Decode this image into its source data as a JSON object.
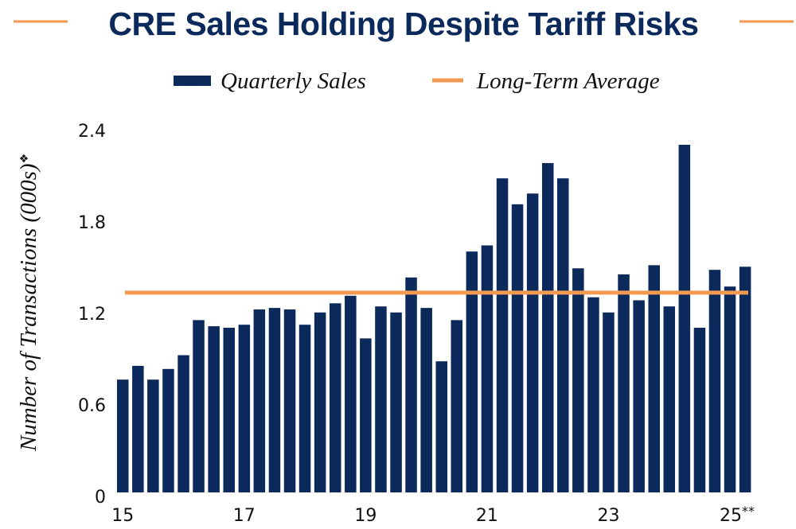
{
  "colors": {
    "bar": "#0b2a5b",
    "average_line": "#f39a52",
    "title": "#0b2a5b",
    "text": "#111111"
  },
  "chart_data": {
    "type": "bar",
    "title": "CRE Sales Holding Despite Tariff Risks",
    "xlabel": "",
    "ylabel": "Number of Transactions (000s)",
    "ylabel_marker": "❖",
    "ylim": [
      0,
      2.4
    ],
    "yticks": [
      0,
      0.6,
      1.2,
      1.8,
      2.4
    ],
    "ytick_labels": [
      "0",
      "0.6",
      "1.2",
      "1.8",
      "2.4"
    ],
    "grid": false,
    "legend": {
      "placement": "top-center",
      "entries": [
        {
          "label": "Quarterly Sales",
          "type": "bar"
        },
        {
          "label": "Long-Term Average",
          "type": "line"
        }
      ]
    },
    "categories": [
      "15Q1",
      "15Q2",
      "15Q3",
      "15Q4",
      "16Q1",
      "16Q2",
      "16Q3",
      "16Q4",
      "17Q1",
      "17Q2",
      "17Q3",
      "17Q4",
      "18Q1",
      "18Q2",
      "18Q3",
      "18Q4",
      "19Q1",
      "19Q2",
      "19Q3",
      "19Q4",
      "20Q1",
      "20Q2",
      "20Q3",
      "20Q4",
      "21Q1",
      "21Q2",
      "21Q3",
      "21Q4",
      "22Q1",
      "22Q2",
      "22Q3",
      "22Q4",
      "23Q1",
      "23Q2",
      "23Q3",
      "23Q4",
      "24Q1",
      "24Q2",
      "24Q3",
      "24Q4",
      "25Q1",
      "25Q2"
    ],
    "xtick_labels": [
      {
        "index": 0,
        "label": "15"
      },
      {
        "index": 8,
        "label": "17"
      },
      {
        "index": 16,
        "label": "19"
      },
      {
        "index": 24,
        "label": "21"
      },
      {
        "index": 32,
        "label": "23"
      },
      {
        "index": 40,
        "label": "25**"
      }
    ],
    "series": [
      {
        "name": "Quarterly Sales",
        "type": "bar",
        "values": [
          0.74,
          0.83,
          0.74,
          0.81,
          0.9,
          1.13,
          1.09,
          1.08,
          1.1,
          1.2,
          1.21,
          1.2,
          1.1,
          1.18,
          1.24,
          1.29,
          1.01,
          1.22,
          1.18,
          1.41,
          1.21,
          0.86,
          1.13,
          1.58,
          1.62,
          2.06,
          1.89,
          1.96,
          2.16,
          2.06,
          1.47,
          1.28,
          1.18,
          1.43,
          1.26,
          1.49,
          1.22,
          2.28,
          1.08,
          1.46,
          1.35,
          1.48
        ]
      },
      {
        "name": "Long-Term Average",
        "type": "line",
        "value": 1.31
      }
    ]
  }
}
